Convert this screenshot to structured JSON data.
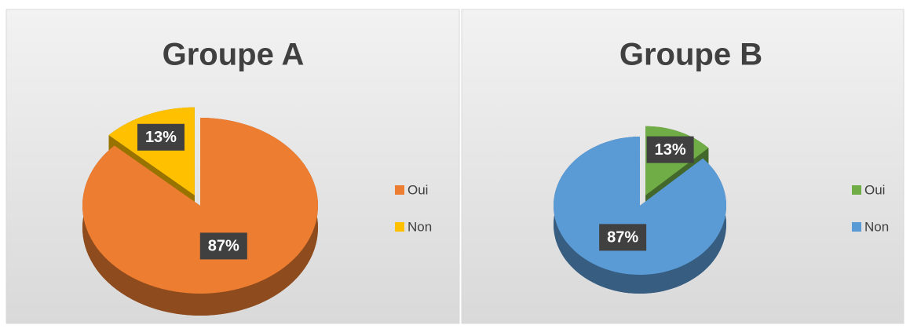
{
  "chart_data": [
    {
      "type": "pie",
      "title": "Groupe A",
      "categories": [
        "Oui",
        "Non"
      ],
      "values": [
        87,
        13
      ],
      "value_labels": [
        "87%",
        "13%"
      ],
      "colors": [
        "#ed7d31",
        "#ffc000"
      ],
      "legend": "right"
    },
    {
      "type": "pie",
      "title": "Groupe B",
      "categories": [
        "Oui",
        "Non"
      ],
      "values": [
        13,
        87
      ],
      "value_labels": [
        "13%",
        "87%"
      ],
      "colors": [
        "#70ad47",
        "#5b9bd5"
      ],
      "legend": "right"
    }
  ]
}
